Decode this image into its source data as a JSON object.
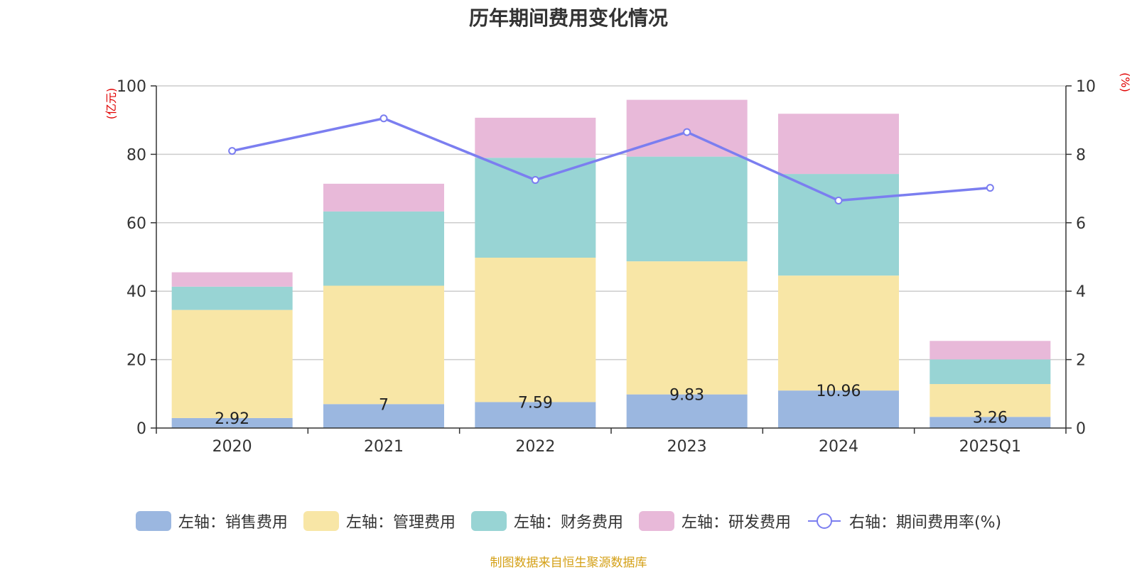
{
  "chart_data": {
    "type": "bar",
    "title": "历年期间费用变化情况",
    "categories": [
      "2020",
      "2021",
      "2022",
      "2023",
      "2024",
      "2025Q1"
    ],
    "left_axis": {
      "unit": "(亿元)",
      "ylim": [
        0,
        100
      ],
      "ticks": [
        0,
        20,
        40,
        60,
        80,
        100
      ]
    },
    "right_axis": {
      "unit": "(%)",
      "ylim": [
        0,
        10
      ],
      "ticks": [
        0,
        2,
        4,
        6,
        8,
        10
      ]
    },
    "series": [
      {
        "name": "左轴：销售费用",
        "type": "bar",
        "axis": "left",
        "color": "#9bb7e0",
        "values": [
          2.92,
          7,
          7.59,
          9.83,
          10.96,
          3.26
        ],
        "labels": [
          "2.92",
          "7",
          "7.59",
          "9.83",
          "10.96",
          "3.26"
        ]
      },
      {
        "name": "左轴：管理费用",
        "type": "bar",
        "axis": "left",
        "color": "#f8e6a6",
        "values": [
          31.6,
          34.6,
          42.2,
          38.9,
          33.6,
          9.6
        ]
      },
      {
        "name": "左轴：财务费用",
        "type": "bar",
        "axis": "left",
        "color": "#98d4d4",
        "values": [
          6.8,
          21.7,
          29.2,
          30.6,
          29.7,
          7.2
        ]
      },
      {
        "name": "左轴：研发费用",
        "type": "bar",
        "axis": "left",
        "color": "#e8b9d9",
        "values": [
          4.2,
          8.1,
          11.7,
          16.6,
          17.6,
          5.4
        ]
      },
      {
        "name": "右轴：期间费用率(%)",
        "type": "line",
        "axis": "right",
        "color": "#7b7ef0",
        "values": [
          8.1,
          9.05,
          7.25,
          8.65,
          6.65,
          7.02
        ]
      }
    ],
    "grid": true,
    "legend_position": "bottom"
  },
  "source_note": "制图数据来自恒生聚源数据库"
}
